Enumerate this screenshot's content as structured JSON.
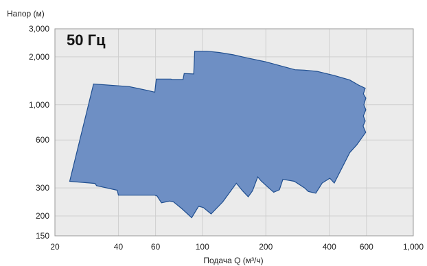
{
  "chart_data": {
    "type": "area",
    "ylabel": "Напор (м)",
    "xlabel": "Подача Q (м³/ч)",
    "annotation": "50 Гц",
    "x_scale": "log",
    "y_scale": "log",
    "xlim": [
      20,
      1000
    ],
    "ylim": [
      150,
      3000
    ],
    "x_ticks": [
      20,
      40,
      60,
      100,
      200,
      400,
      600,
      1000
    ],
    "x_tick_labels": [
      "20",
      "40",
      "60",
      "100",
      "200",
      "400",
      "600",
      "1,000"
    ],
    "y_ticks": [
      150,
      200,
      300,
      600,
      1000,
      2000,
      3000
    ],
    "y_tick_labels": [
      "150",
      "200",
      "300",
      "600",
      "1,000",
      "2,000",
      "3,000"
    ],
    "grid": true,
    "colors": {
      "fill": "#6e8fc4",
      "stroke": "#1f4e8f",
      "plot_bg": "#ebebeb",
      "grid": "#cfcfcf"
    },
    "series": [
      {
        "x": [
          23.5,
          30.5,
          45,
          55,
          59.5,
          60.5,
          71,
          72,
          81,
          82,
          91,
          92,
          105,
          120,
          140,
          160,
          200,
          275,
          305,
          350,
          420,
          500,
          550,
          592,
          580,
          596,
          583,
          596,
          580,
          592,
          578,
          595,
          540,
          500,
          422,
          402,
          370,
          345,
          318,
          305,
          273,
          241,
          232,
          218,
          203,
          190,
          183,
          173,
          165,
          155,
          145,
          125,
          110,
          101,
          96,
          89,
          80,
          73,
          70,
          64,
          61,
          59.5,
          40,
          39.5,
          31.5,
          31,
          23.5
        ],
        "y": [
          330,
          1350,
          1300,
          1230,
          1200,
          1450,
          1450,
          1440,
          1440,
          1570,
          1560,
          2170,
          2170,
          2130,
          2060,
          1980,
          1860,
          1660,
          1650,
          1620,
          1530,
          1430,
          1330,
          1270,
          1170,
          1100,
          1000,
          930,
          850,
          790,
          735,
          670,
          560,
          500,
          322,
          345,
          322,
          278,
          285,
          300,
          330,
          340,
          292,
          282,
          306,
          332,
          352,
          288,
          264,
          288,
          321,
          245,
          206,
          226,
          230,
          195,
          222,
          245,
          248,
          242,
          267,
          270,
          270,
          290,
          310,
          320,
          330
        ]
      }
    ]
  }
}
